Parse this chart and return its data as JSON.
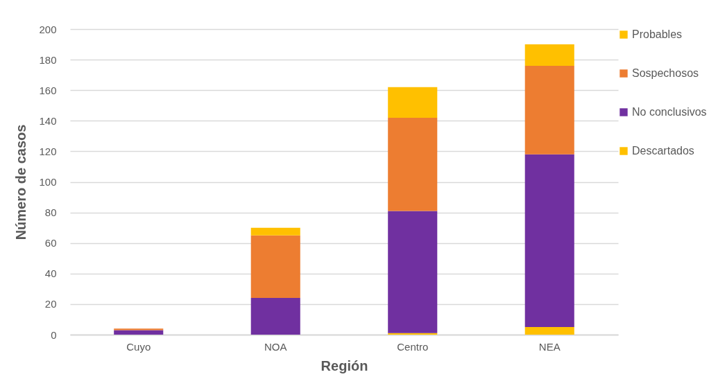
{
  "chart_data": {
    "type": "bar",
    "stacked": true,
    "xlabel": "Región",
    "ylabel": "Número de casos",
    "categories": [
      "Cuyo",
      "NOA",
      "Centro",
      "NEA"
    ],
    "series": [
      {
        "name": "Descartados",
        "color": "#ffc000",
        "values": [
          0,
          0,
          1,
          5
        ]
      },
      {
        "name": "No conclusivos",
        "color": "#7030a0",
        "values": [
          3,
          24,
          80,
          113
        ]
      },
      {
        "name": "Sospechosos",
        "color": "#ed7d31",
        "values": [
          1,
          41,
          61,
          58
        ]
      },
      {
        "name": "Probables",
        "color": "#ffc000",
        "values": [
          0,
          5,
          20,
          14
        ]
      }
    ],
    "ylim": [
      0,
      200
    ],
    "yticks": [
      0,
      20,
      40,
      60,
      80,
      100,
      120,
      140,
      160,
      180,
      200
    ],
    "grid": "y",
    "legend": "right"
  }
}
